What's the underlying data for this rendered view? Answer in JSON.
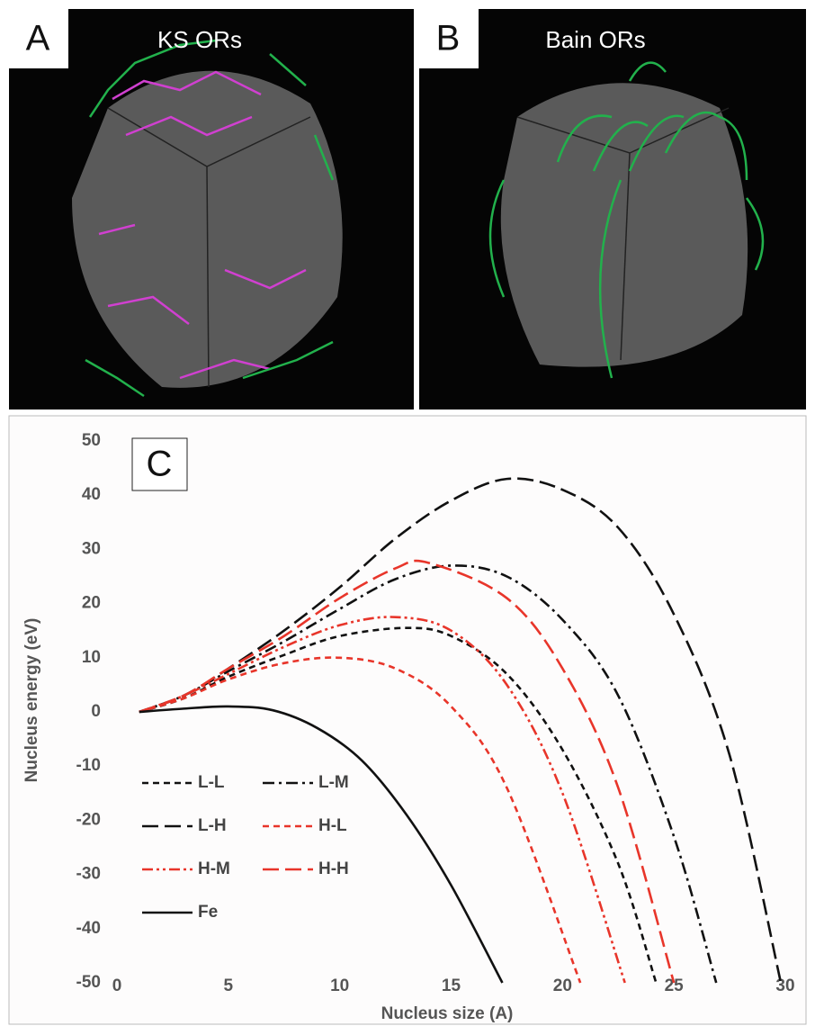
{
  "panels": [
    {
      "label": "A",
      "title": "KS ORs"
    },
    {
      "label": "B",
      "title": "Bain ORs"
    }
  ],
  "chart_data": {
    "type": "line",
    "panel_label": "C",
    "x_label": "Nucleus size (A)",
    "y_label": "Nucleus energy (eV)",
    "xlim": [
      0,
      30
    ],
    "ylim": [
      -50,
      50
    ],
    "xticks": [
      0,
      5,
      10,
      15,
      20,
      25,
      30
    ],
    "yticks": [
      50,
      40,
      30,
      20,
      10,
      0,
      -10,
      -20,
      -30,
      -40,
      -50
    ],
    "grid": false,
    "series": [
      {
        "name": "L-L",
        "color": "#111111",
        "style": "dash",
        "x": [
          1,
          3,
          5,
          7.5,
          10,
          13,
          15,
          17.5,
          20,
          22.5,
          24.2
        ],
        "values": [
          0,
          2.5,
          6.5,
          10.5,
          14,
          15.5,
          14,
          7,
          -7,
          -28,
          -50
        ]
      },
      {
        "name": "L-M",
        "color": "#111111",
        "style": "dashdot",
        "x": [
          1,
          3,
          5,
          7.5,
          10,
          12.5,
          15,
          17.5,
          20,
          22.5,
          25,
          26.9
        ],
        "values": [
          0,
          3,
          7.5,
          13,
          19,
          24.5,
          27,
          25,
          17,
          3,
          -23,
          -50
        ]
      },
      {
        "name": "L-H",
        "color": "#111111",
        "style": "longdash",
        "x": [
          1,
          3,
          5,
          7.5,
          10,
          12.5,
          15,
          17.5,
          20,
          22.5,
          25,
          27.5,
          29.8
        ],
        "values": [
          0,
          3,
          8,
          15,
          23,
          32,
          39,
          43,
          41,
          34,
          18,
          -8,
          -50
        ]
      },
      {
        "name": "H-L",
        "color": "#e8352a",
        "style": "dash",
        "x": [
          1,
          3,
          5,
          7.5,
          10,
          12.5,
          15,
          17.5,
          20.8
        ],
        "values": [
          0,
          2.5,
          6,
          9,
          10,
          8,
          1,
          -14,
          -50
        ]
      },
      {
        "name": "H-M",
        "color": "#e8352a",
        "style": "dashdotdot",
        "x": [
          1,
          3,
          5,
          7.5,
          10,
          12.5,
          15,
          17.5,
          20,
          22.8
        ],
        "values": [
          0,
          3,
          7,
          12,
          16,
          17.5,
          15,
          5,
          -15,
          -50
        ]
      },
      {
        "name": "H-H",
        "color": "#e8352a",
        "style": "longdash",
        "x": [
          1,
          3,
          5,
          7.5,
          10,
          12.5,
          14,
          17.5,
          20,
          22.5,
          25
        ],
        "values": [
          0,
          3,
          8,
          14,
          21,
          26.5,
          27.5,
          21,
          8,
          -14,
          -50
        ]
      },
      {
        "name": "Fe",
        "color": "#111111",
        "style": "solid",
        "x": [
          1,
          3,
          5,
          7,
          9,
          11,
          13,
          15,
          17.3
        ],
        "values": [
          0,
          0.6,
          1,
          0.3,
          -3,
          -9,
          -19,
          -32,
          -50
        ]
      }
    ]
  }
}
